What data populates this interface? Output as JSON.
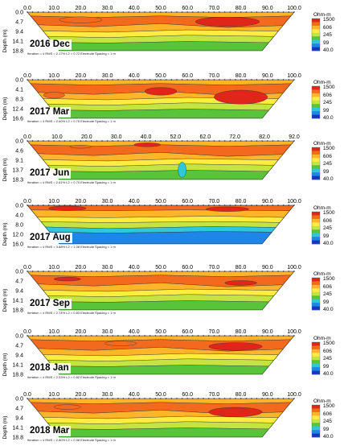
{
  "chart_data": {
    "type": "heatmap",
    "unit": "Ohm-m",
    "ylabel": "Depth (m)",
    "colorbar_ticks": [
      "1500",
      "606",
      "245",
      "99",
      "40.0"
    ],
    "colorbar_colors": [
      "#e0251b",
      "#f36a1e",
      "#ffb42a",
      "#ffec40",
      "#c4e540",
      "#58c43a",
      "#2fc8d8",
      "#1f86e8",
      "#1436c8"
    ],
    "panels": [
      {
        "label": "2016 Dec",
        "x_ticks": [
          "0.0",
          "10.0",
          "20.0",
          "30.0",
          "40.0",
          "50.0",
          "60.0",
          "70.0",
          "80.0",
          "90.0",
          "100.0"
        ],
        "depth_ticks": [
          "0.0",
          "4.7",
          "9.4",
          "14.1",
          "18.8"
        ],
        "footer": "Iteration = 4    RMS = 2.17%    L2 = 0.72    Electrode Spacing = 1 m",
        "top": 4
      },
      {
        "label": "2017 Mar",
        "x_ticks": [
          "0.0",
          "10.0",
          "20.0",
          "30.0",
          "40.0",
          "50.0",
          "60.0",
          "70.0",
          "80.0",
          "90.0",
          "100.0"
        ],
        "depth_ticks": [
          "0.0",
          "4.1",
          "8.3",
          "12.4",
          "16.6"
        ],
        "footer": "Iteration = 4    RMS = 2.60%    L2 = 0.75    Electrode Spacing = 1 m",
        "top": 88
      },
      {
        "label": "2017 Jun",
        "x_ticks": [
          "0.0",
          "10.0",
          "20.0",
          "30.0",
          "40.0",
          "52.0",
          "62.0",
          "72.0",
          "82.0",
          "92.0"
        ],
        "depth_ticks": [
          "0.0",
          "4.6",
          "9.1",
          "13.7",
          "18.3"
        ],
        "footer": "Iteration = 4    RMS = 2.61%    L2 = 0.70    Electrode Spacing = 1 m",
        "top": 164
      },
      {
        "label": "2017 Aug",
        "x_ticks": [
          "0.0",
          "10.0",
          "20.0",
          "30.0",
          "40.0",
          "50.0",
          "60.0",
          "70.0",
          "80.0",
          "90.0",
          "100.0"
        ],
        "depth_ticks": [
          "0.0",
          "4.0",
          "8.0",
          "12.0",
          "16.0"
        ],
        "footer": "Iteration = 4    RMS = 3.88%    L2 = 1.08    Electrode Spacing = 1 m",
        "top": 244
      },
      {
        "label": "2017 Sep",
        "x_ticks": [
          "0.0",
          "10.0",
          "20.0",
          "30.0",
          "40.0",
          "50.0",
          "60.0",
          "70.0",
          "80.0",
          "90.0",
          "100.0"
        ],
        "depth_ticks": [
          "0.0",
          "4.7",
          "9.4",
          "14.1",
          "18.8"
        ],
        "footer": "Iteration = 4    RMS = 2.74%    L2 = 0.83    Electrode Spacing = 1 m",
        "top": 326
      },
      {
        "label": "2018 Jan",
        "x_ticks": [
          "0.0",
          "10.0",
          "20.0",
          "30.0",
          "40.0",
          "50.0",
          "60.0",
          "70.0",
          "80.0",
          "90.0",
          "100.0"
        ],
        "depth_ticks": [
          "0.0",
          "4.7",
          "9.4",
          "14.1",
          "18.8"
        ],
        "footer": "Iteration = 4    RMS = 2.53%    L2 = 0.82    Electrode Spacing = 1 m",
        "top": 406
      },
      {
        "label": "2018 Mar",
        "x_ticks": [
          "0.0",
          "10.0",
          "20.0",
          "30.0",
          "40.0",
          "50.0",
          "60.0",
          "70.0",
          "80.0",
          "90.0",
          "100.0"
        ],
        "depth_ticks": [
          "0.0",
          "4.7",
          "9.4",
          "14.1",
          "18.8"
        ],
        "footer": "Iteration = 4    RMS = 2.80%    L2 = 0.98    Electrode Spacing = 1 m",
        "top": 484
      }
    ]
  }
}
